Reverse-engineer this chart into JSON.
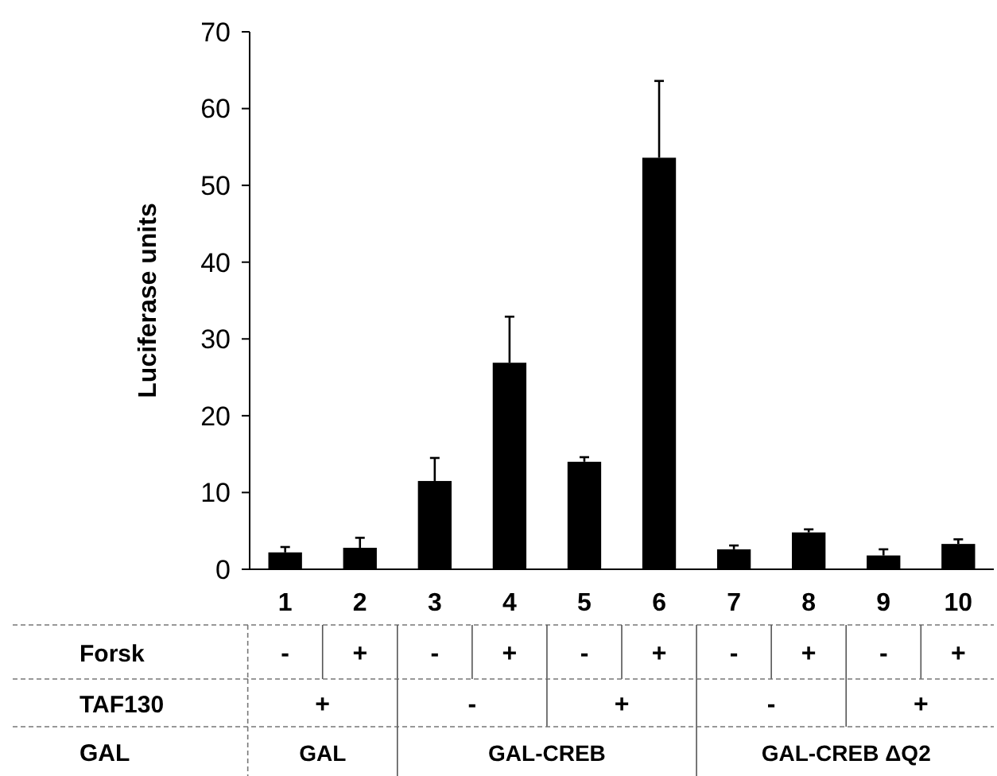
{
  "chart_data": {
    "type": "bar",
    "ylabel": "Luciferase units",
    "categories": [
      "1",
      "2",
      "3",
      "4",
      "5",
      "6",
      "7",
      "8",
      "9",
      "10"
    ],
    "values": [
      2.2,
      2.8,
      11.5,
      26.9,
      14.0,
      53.6,
      2.6,
      4.8,
      1.8,
      3.3
    ],
    "errors": [
      [
        2.2,
        2.9
      ],
      [
        2.8,
        4.1
      ],
      [
        11.5,
        14.5
      ],
      [
        26.9,
        32.9
      ],
      [
        14.0,
        14.6
      ],
      [
        53.6,
        63.6
      ],
      [
        2.6,
        3.1
      ],
      [
        4.8,
        5.2
      ],
      [
        1.8,
        2.6
      ],
      [
        3.3,
        3.9
      ]
    ],
    "color": "#000000",
    "ylim": [
      0,
      70
    ],
    "yticks": [
      0,
      10,
      20,
      30,
      40,
      50,
      60,
      70
    ],
    "grid": false,
    "annotations": [
      "Forsk",
      "-",
      "+",
      "-",
      "+",
      "-",
      "+",
      "-",
      "+",
      "-",
      "+",
      "TAF130",
      "+",
      "-",
      "+",
      "-",
      "+",
      "GAL",
      "GAL",
      "GAL-CREB",
      "GAL-CREB ΔQ2"
    ]
  }
}
